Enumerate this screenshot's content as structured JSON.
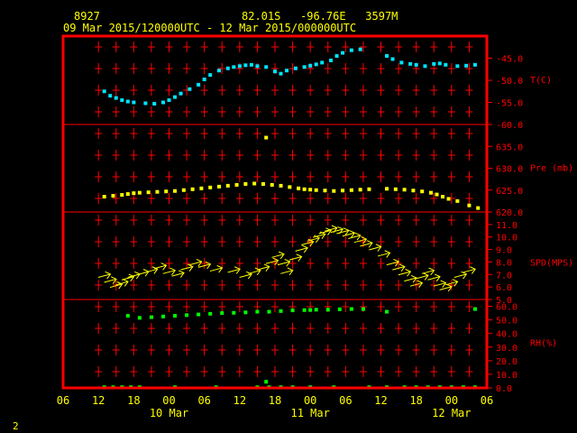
{
  "header": {
    "station_id": "8927",
    "location": "82.01S   -96.76E   3597M",
    "time_range": "09 Mar 2015/120000UTC - 12 Mar 2015/000000UTC"
  },
  "footer": {
    "page_number": "2"
  },
  "colors": {
    "background": "#000000",
    "frame": "#ff0000",
    "temperature": "#00e5ff",
    "pressure": "#ffff00",
    "wind": "#ffff00",
    "humidity": "#00ff00",
    "text": "#ffff00"
  },
  "chart_data": {
    "type": "scatter",
    "x_axis": {
      "unit": "hours since 09 Mar 00UTC",
      "range": [
        6,
        78
      ],
      "tick_labels": [
        "06",
        "12",
        "18",
        "00",
        "06",
        "12",
        "18",
        "00",
        "06",
        "12",
        "18",
        "00",
        "06"
      ],
      "day_labels": [
        {
          "label": "10 Mar",
          "x": 24
        },
        {
          "label": "11 Mar",
          "x": 48
        },
        {
          "label": "12 Mar",
          "x": 72
        }
      ]
    },
    "panels": [
      {
        "name": "temperature",
        "label": "T(C)",
        "ylim": [
          -60,
          -40
        ],
        "ticks": [
          "-45.0",
          "-50.0",
          "-55.0",
          "-60.0"
        ],
        "tick_values": [
          -45,
          -50,
          -55,
          -60
        ],
        "points": [
          [
            13,
            -52.5
          ],
          [
            14,
            -53.5
          ],
          [
            15,
            -54.0
          ],
          [
            16,
            -54.5
          ],
          [
            17,
            -54.8
          ],
          [
            18,
            -55.0
          ],
          [
            20,
            -55.2
          ],
          [
            21.5,
            -55.3
          ],
          [
            23,
            -55.0
          ],
          [
            24,
            -54.5
          ],
          [
            25,
            -53.8
          ],
          [
            26,
            -53.0
          ],
          [
            27.5,
            -52.0
          ],
          [
            29,
            -51.0
          ],
          [
            30,
            -49.8
          ],
          [
            31,
            -48.8
          ],
          [
            32.5,
            -47.8
          ],
          [
            34,
            -47.3
          ],
          [
            35,
            -47.0
          ],
          [
            36,
            -46.8
          ],
          [
            37,
            -46.6
          ],
          [
            38,
            -46.5
          ],
          [
            39,
            -46.8
          ],
          [
            40.5,
            -47.0
          ],
          [
            42,
            -48.0
          ],
          [
            43,
            -48.5
          ],
          [
            44,
            -47.8
          ],
          [
            45.5,
            -47.3
          ],
          [
            47,
            -47.0
          ],
          [
            48,
            -46.7
          ],
          [
            49,
            -46.4
          ],
          [
            50,
            -46.0
          ],
          [
            51.5,
            -45.5
          ],
          [
            52.5,
            -44.5
          ],
          [
            53.5,
            -43.8
          ],
          [
            55,
            -43.2
          ],
          [
            56.5,
            -43.0
          ],
          [
            61,
            -44.5
          ],
          [
            62,
            -45.2
          ],
          [
            63.5,
            -46.0
          ],
          [
            65,
            -46.3
          ],
          [
            66,
            -46.5
          ],
          [
            67.5,
            -46.8
          ],
          [
            69,
            -46.3
          ],
          [
            70,
            -46.2
          ],
          [
            71,
            -46.5
          ],
          [
            73,
            -46.8
          ],
          [
            74.5,
            -46.7
          ],
          [
            76,
            -46.5
          ]
        ]
      },
      {
        "name": "pressure",
        "label": "Pre (mb)",
        "ylim": [
          620,
          640
        ],
        "ticks": [
          "635.0",
          "630.0",
          "625.0",
          "620.0"
        ],
        "tick_values": [
          635,
          630,
          625,
          620
        ],
        "points": [
          [
            13,
            623.5
          ],
          [
            14.5,
            623.7
          ],
          [
            16,
            623.9
          ],
          [
            17,
            624.1
          ],
          [
            18,
            624.3
          ],
          [
            19,
            624.4
          ],
          [
            20.5,
            624.5
          ],
          [
            22,
            624.6
          ],
          [
            23.5,
            624.7
          ],
          [
            25,
            624.8
          ],
          [
            26.5,
            625.0
          ],
          [
            28,
            625.2
          ],
          [
            29.5,
            625.4
          ],
          [
            31,
            625.6
          ],
          [
            32.5,
            625.8
          ],
          [
            34,
            626.0
          ],
          [
            35.5,
            626.2
          ],
          [
            37,
            626.4
          ],
          [
            38.5,
            626.5
          ],
          [
            40,
            626.4
          ],
          [
            41.5,
            626.2
          ],
          [
            43,
            626.0
          ],
          [
            44.5,
            625.7
          ],
          [
            46,
            625.4
          ],
          [
            47,
            625.2
          ],
          [
            48,
            625.1
          ],
          [
            49,
            625.0
          ],
          [
            50.5,
            624.9
          ],
          [
            52,
            624.8
          ],
          [
            53.5,
            624.9
          ],
          [
            55,
            625.0
          ],
          [
            56.5,
            625.1
          ],
          [
            58,
            625.2
          ],
          [
            61,
            625.3
          ],
          [
            62.5,
            625.2
          ],
          [
            64,
            625.1
          ],
          [
            65.5,
            624.9
          ],
          [
            67,
            624.7
          ],
          [
            68.5,
            624.4
          ],
          [
            69.5,
            624.0
          ],
          [
            70.5,
            623.5
          ],
          [
            71.5,
            623.0
          ],
          [
            73,
            622.5
          ],
          [
            75,
            621.5
          ],
          [
            76.5,
            620.9
          ],
          [
            40.5,
            637.0
          ]
        ]
      },
      {
        "name": "wind",
        "label": "SPD(MPS)",
        "ylim": [
          5,
          12
        ],
        "ticks": [
          "11.0",
          "10.0",
          "9.0",
          "8.0",
          "7.0",
          "6.0",
          "5.0"
        ],
        "tick_values": [
          11,
          10,
          9,
          8,
          7,
          6,
          5
        ],
        "points": [
          [
            13,
            6.9
          ],
          [
            14,
            6.5
          ],
          [
            15,
            6.1
          ],
          [
            16,
            6.3
          ],
          [
            17,
            6.7
          ],
          [
            18,
            6.9
          ],
          [
            19.5,
            7.1
          ],
          [
            21,
            7.3
          ],
          [
            22.5,
            7.6
          ],
          [
            24,
            7.2
          ],
          [
            25.5,
            7.0
          ],
          [
            27,
            7.5
          ],
          [
            28.5,
            7.9
          ],
          [
            30,
            7.7
          ],
          [
            32,
            7.4
          ],
          [
            35,
            7.3
          ],
          [
            37,
            6.9
          ],
          [
            38.5,
            7.2
          ],
          [
            40,
            7.5
          ],
          [
            41.5,
            8.0
          ],
          [
            42.5,
            8.5
          ],
          [
            43.5,
            7.9
          ],
          [
            44,
            7.2
          ],
          [
            45.5,
            8.3
          ],
          [
            46.5,
            9.0
          ],
          [
            47.5,
            9.5
          ],
          [
            48.5,
            9.8
          ],
          [
            49.5,
            10.1
          ],
          [
            50.5,
            10.4
          ],
          [
            51.5,
            10.6
          ],
          [
            52.5,
            10.5
          ],
          [
            53.5,
            10.4
          ],
          [
            54.5,
            10.2
          ],
          [
            55.5,
            10.0
          ],
          [
            56.5,
            9.7
          ],
          [
            57.5,
            9.4
          ],
          [
            59,
            9.1
          ],
          [
            60.5,
            8.6
          ],
          [
            62,
            7.9
          ],
          [
            63,
            7.5
          ],
          [
            64,
            7.1
          ],
          [
            65,
            6.6
          ],
          [
            66,
            6.2
          ],
          [
            67,
            6.8
          ],
          [
            68,
            7.2
          ],
          [
            69,
            6.7
          ],
          [
            70,
            6.2
          ],
          [
            71,
            5.9
          ],
          [
            72,
            6.3
          ],
          [
            73.5,
            6.9
          ],
          [
            75,
            7.3
          ]
        ]
      },
      {
        "name": "humidity",
        "label": "RH(%)",
        "ylim": [
          0,
          65
        ],
        "ticks": [
          "60.0",
          "50.0",
          "40.0",
          "30.0",
          "20.0",
          "10.0",
          "0.0"
        ],
        "tick_values": [
          60,
          50,
          40,
          30,
          20,
          10,
          0
        ],
        "points": [
          [
            17,
            53.0
          ],
          [
            19,
            51.5
          ],
          [
            21,
            52.0
          ],
          [
            23,
            52.5
          ],
          [
            25,
            53.0
          ],
          [
            27,
            53.5
          ],
          [
            29,
            54.0
          ],
          [
            31,
            54.5
          ],
          [
            33,
            55.0
          ],
          [
            35,
            55.2
          ],
          [
            37,
            55.5
          ],
          [
            39,
            56.0
          ],
          [
            41,
            56.0
          ],
          [
            43,
            56.5
          ],
          [
            45,
            57.0
          ],
          [
            47,
            57.2
          ],
          [
            48,
            57.3
          ],
          [
            49,
            57.5
          ],
          [
            51,
            57.5
          ],
          [
            53,
            57.8
          ],
          [
            55,
            58.0
          ],
          [
            57,
            58.0
          ],
          [
            61,
            56.0
          ],
          [
            76,
            58.0
          ],
          [
            13,
            0.5
          ],
          [
            14.5,
            0.5
          ],
          [
            16,
            0.5
          ],
          [
            17.5,
            0.5
          ],
          [
            19,
            0.5
          ],
          [
            25,
            0.5
          ],
          [
            32,
            0.5
          ],
          [
            39,
            0.5
          ],
          [
            40.5,
            4.5
          ],
          [
            41,
            0.5
          ],
          [
            43,
            0.5
          ],
          [
            45,
            0.5
          ],
          [
            48,
            0.5
          ],
          [
            52,
            0.5
          ],
          [
            58,
            0.5
          ],
          [
            61,
            0.5
          ],
          [
            64,
            0.5
          ],
          [
            66,
            0.5
          ],
          [
            68,
            0.5
          ],
          [
            70,
            0.5
          ],
          [
            72,
            0.5
          ],
          [
            74,
            0.5
          ],
          [
            76,
            0.5
          ]
        ]
      }
    ]
  }
}
